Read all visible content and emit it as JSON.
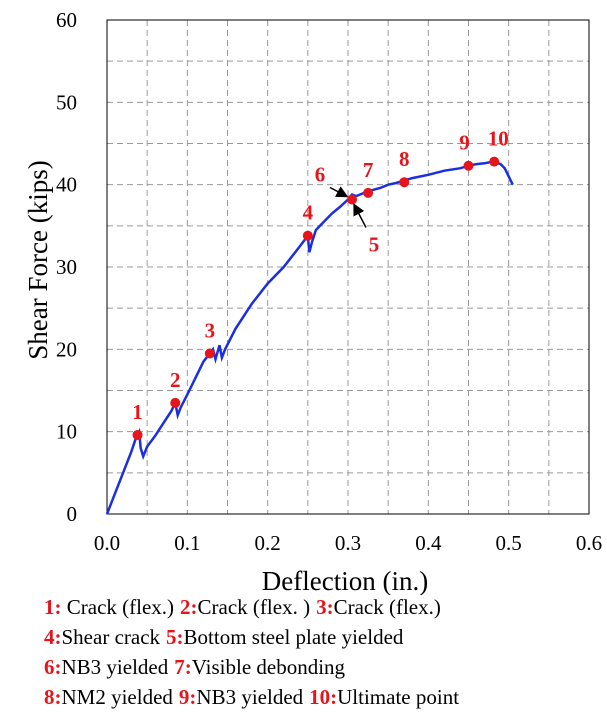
{
  "chart_data": {
    "type": "line",
    "title": "",
    "xlabel": "Deflection  (in.)",
    "ylabel": "Shear Force (kips)",
    "xlim": [
      0.0,
      0.6
    ],
    "ylim": [
      0,
      60
    ],
    "xticks": [
      "0.0",
      "0.1",
      "0.2",
      "0.3",
      "0.4",
      "0.5",
      "0.6"
    ],
    "yticks": [
      "0",
      "10",
      "20",
      "30",
      "40",
      "50",
      "60"
    ],
    "grid": "dashed",
    "line_color": "#1a2fe0",
    "marker_color": "#e8141b",
    "series": [
      {
        "x": [
          0.0,
          0.01,
          0.02,
          0.03,
          0.037,
          0.04,
          0.042,
          0.045,
          0.05,
          0.06,
          0.07,
          0.08,
          0.085,
          0.088,
          0.092,
          0.1,
          0.11,
          0.12,
          0.128,
          0.132,
          0.135,
          0.14,
          0.143,
          0.147,
          0.16,
          0.18,
          0.2,
          0.22,
          0.24,
          0.25,
          0.252,
          0.255,
          0.26,
          0.27,
          0.28,
          0.29,
          0.3,
          0.305,
          0.31,
          0.32,
          0.325,
          0.34,
          0.35,
          0.36,
          0.37,
          0.38,
          0.4,
          0.42,
          0.44,
          0.45,
          0.46,
          0.47,
          0.48,
          0.49,
          0.495,
          0.5,
          0.505
        ],
        "y": [
          0,
          2.5,
          5,
          7.5,
          9.5,
          10,
          8,
          7,
          8.2,
          9.5,
          11,
          12.5,
          13.5,
          12,
          13,
          14.5,
          16.5,
          18.5,
          19.5,
          20,
          18.8,
          20.5,
          19,
          20,
          22.5,
          25.5,
          28,
          30,
          32.5,
          33.8,
          31.8,
          33,
          34.5,
          35.5,
          36.5,
          37.3,
          38.2,
          38.8,
          38.6,
          39.0,
          39.2,
          39.6,
          40.0,
          40.2,
          40.5,
          40.8,
          41.2,
          41.7,
          42.0,
          42.3,
          42.5,
          42.6,
          42.8,
          42.5,
          42.0,
          41.0,
          40.0
        ]
      }
    ],
    "markers": [
      {
        "label": "1",
        "x": 0.038,
        "y": 9.6
      },
      {
        "label": "2",
        "x": 0.085,
        "y": 13.5
      },
      {
        "label": "3",
        "x": 0.128,
        "y": 19.5
      },
      {
        "label": "4",
        "x": 0.25,
        "y": 33.8
      },
      {
        "label": "5",
        "x": 0.305,
        "y": 38.2
      },
      {
        "label": "6",
        "x": 0.305,
        "y": 38.2
      },
      {
        "label": "7",
        "x": 0.325,
        "y": 39.0
      },
      {
        "label": "8",
        "x": 0.37,
        "y": 40.3
      },
      {
        "label": "9",
        "x": 0.45,
        "y": 42.3
      },
      {
        "label": "10",
        "x": 0.482,
        "y": 42.8
      }
    ]
  },
  "legend": [
    [
      {
        "num": "1:",
        "text": " Crack (flex.)"
      },
      {
        "num": "2:",
        "text": "Crack (flex. )"
      },
      {
        "num": "3:",
        "text": "Crack (flex.)"
      }
    ],
    [
      {
        "num": "4:",
        "text": "Shear crack"
      },
      {
        "num": "5:",
        "text": "Bottom steel plate yielded"
      }
    ],
    [
      {
        "num": "6:",
        "text": "NB3 yielded"
      },
      {
        "num": "7:",
        "text": "Visible debonding"
      }
    ],
    [
      {
        "num": "8:",
        "text": "NM2 yielded"
      },
      {
        "num": "9:",
        "text": "NB3 yielded"
      },
      {
        "num": "10:",
        "text": "Ultimate point"
      }
    ]
  ]
}
